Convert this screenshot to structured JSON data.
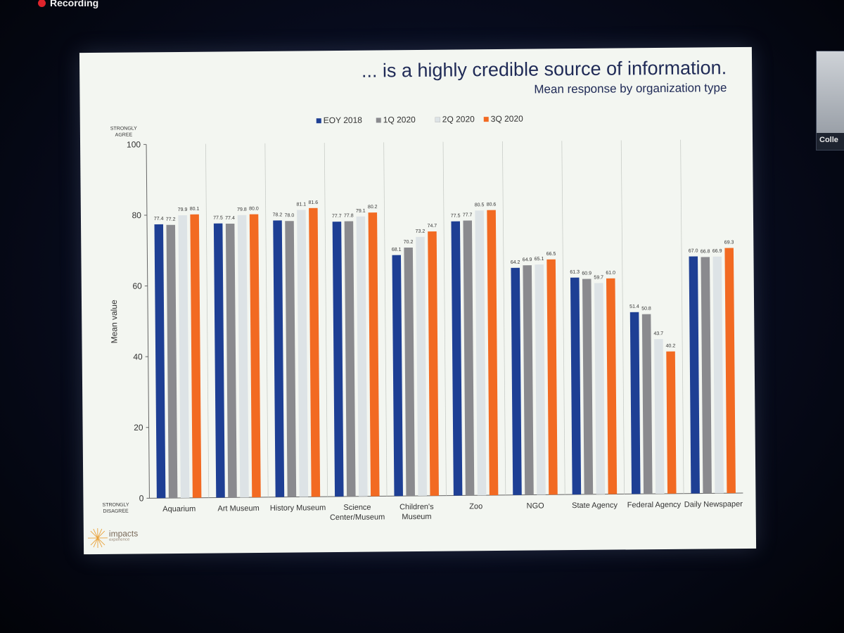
{
  "recording_label": "Recording",
  "side_panel_label": "Colle",
  "slide": {
    "title": "... is a highly credible source of information.",
    "subtitle": "Mean response by organization type",
    "logo_text": "impacts",
    "logo_sub": "experience"
  },
  "chart_data": {
    "type": "bar",
    "ylabel": "Mean value",
    "ylim": [
      0,
      100
    ],
    "yticks": [
      0,
      20,
      40,
      60,
      80,
      100
    ],
    "top_anchor": "STRONGLY AGREE",
    "bottom_anchor": "STRONGLY DISAGREE",
    "categories": [
      "Aquarium",
      "Art Museum",
      "History Museum",
      "Science Center/Museum",
      "Children's Museum",
      "Zoo",
      "NGO",
      "State Agency",
      "Federal Agency",
      "Daily Newspaper"
    ],
    "series": [
      {
        "name": "EOY 2018",
        "color": "#1e3f94",
        "values": [
          77.4,
          77.5,
          78.2,
          77.7,
          68.1,
          77.5,
          64.2,
          61.3,
          51.4,
          67.0
        ],
        "labels": [
          "77.4",
          "77.5",
          "78.2",
          "77.7",
          "68.1",
          "77.5",
          "64.2",
          "61.3",
          "51.4",
          "67.0"
        ]
      },
      {
        "name": "1Q 2020",
        "color": "#8a8a8e",
        "values": [
          77.2,
          77.4,
          78.0,
          77.8,
          70.2,
          77.7,
          64.9,
          60.9,
          50.8,
          66.8
        ],
        "labels": [
          "77.2",
          "77.4",
          "78.0",
          "77.8",
          "70.2",
          "77.7",
          "64.9",
          "60.9",
          "50.8",
          "66.8"
        ]
      },
      {
        "name": "2Q 2020",
        "color": "#dde3e6",
        "values": [
          79.9,
          79.8,
          81.1,
          79.1,
          73.2,
          80.5,
          65.1,
          59.7,
          43.7,
          66.9
        ],
        "labels": [
          "79.9",
          "79.8",
          "81.1",
          "79.1",
          "73.2",
          "80.5",
          "65.1",
          "59.7",
          "43.7",
          "66.9"
        ]
      },
      {
        "name": "3Q 2020",
        "color": "#f26a22",
        "values": [
          80.1,
          80.0,
          81.6,
          80.2,
          74.7,
          80.6,
          66.5,
          61.0,
          40.2,
          69.3
        ],
        "labels": [
          "80.1",
          "80.0",
          "81.6",
          "80.2",
          "74.7",
          "80.6",
          "66.5",
          "61.0",
          "40.2",
          "69.3"
        ]
      }
    ],
    "legend_position": "top",
    "grid": false
  }
}
